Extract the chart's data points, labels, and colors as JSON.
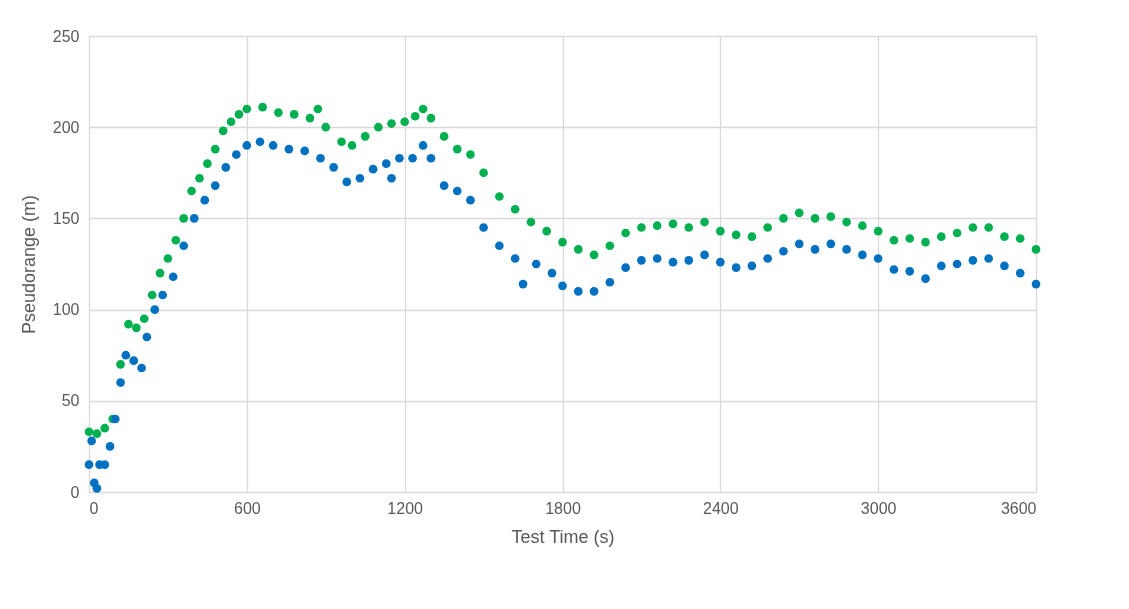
{
  "chart_data": {
    "type": "scatter",
    "xlabel": "Test Time (s)",
    "ylabel": "Pseudorange (m)",
    "xlim": [
      0,
      3600
    ],
    "xticks": [
      0,
      600,
      1200,
      1800,
      2400,
      3000,
      3600
    ],
    "ylim": [
      0,
      250
    ],
    "yticks": [
      0,
      50,
      100,
      150,
      200,
      250
    ],
    "grid": true,
    "marker": "circle",
    "legend": false,
    "series": [
      {
        "color": "#00b050",
        "x": [
          0,
          30,
          60,
          90,
          120,
          150,
          180,
          210,
          240,
          270,
          300,
          330,
          360,
          390,
          420,
          450,
          480,
          510,
          540,
          570,
          600,
          660,
          720,
          780,
          840,
          870,
          900,
          960,
          1000,
          1050,
          1100,
          1150,
          1200,
          1240,
          1270,
          1300,
          1350,
          1400,
          1450,
          1500,
          1560,
          1620,
          1680,
          1740,
          1800,
          1860,
          1920,
          1980,
          2040,
          2100,
          2160,
          2220,
          2280,
          2340,
          2400,
          2460,
          2520,
          2580,
          2640,
          2700,
          2760,
          2820,
          2880,
          2940,
          3000,
          3060,
          3120,
          3180,
          3240,
          3300,
          3360,
          3420,
          3480,
          3540,
          3600
        ],
        "values": [
          33,
          32,
          35,
          40,
          70,
          92,
          90,
          95,
          108,
          120,
          128,
          138,
          150,
          165,
          172,
          180,
          188,
          198,
          203,
          207,
          210,
          211,
          208,
          207,
          205,
          210,
          200,
          192,
          190,
          195,
          200,
          202,
          203,
          206,
          210,
          205,
          195,
          188,
          185,
          175,
          162,
          155,
          148,
          143,
          137,
          133,
          130,
          135,
          142,
          145,
          146,
          147,
          145,
          148,
          143,
          141,
          140,
          145,
          150,
          153,
          150,
          151,
          148,
          146,
          143,
          138,
          139,
          137,
          140,
          142,
          145,
          145,
          140,
          139,
          133
        ]
      },
      {
        "color": "#0070c0",
        "x": [
          0,
          10,
          20,
          30,
          40,
          60,
          80,
          100,
          120,
          140,
          170,
          200,
          220,
          250,
          280,
          320,
          360,
          400,
          440,
          480,
          520,
          560,
          600,
          650,
          700,
          760,
          820,
          880,
          930,
          980,
          1030,
          1080,
          1130,
          1150,
          1180,
          1230,
          1270,
          1300,
          1350,
          1400,
          1450,
          1500,
          1560,
          1620,
          1650,
          1700,
          1760,
          1800,
          1860,
          1920,
          1980,
          2040,
          2100,
          2160,
          2220,
          2280,
          2340,
          2400,
          2460,
          2520,
          2580,
          2640,
          2700,
          2760,
          2820,
          2880,
          2940,
          3000,
          3060,
          3120,
          3180,
          3240,
          3300,
          3360,
          3420,
          3480,
          3540,
          3600
        ],
        "values": [
          15,
          28,
          5,
          2,
          15,
          15,
          25,
          40,
          60,
          75,
          72,
          68,
          85,
          100,
          108,
          118,
          135,
          150,
          160,
          168,
          178,
          185,
          190,
          192,
          190,
          188,
          187,
          183,
          178,
          170,
          172,
          177,
          180,
          172,
          183,
          183,
          190,
          183,
          168,
          165,
          160,
          145,
          135,
          128,
          114,
          125,
          120,
          113,
          110,
          110,
          115,
          123,
          127,
          128,
          126,
          127,
          130,
          126,
          123,
          124,
          128,
          132,
          136,
          133,
          136,
          133,
          130,
          128,
          122,
          121,
          117,
          124,
          125,
          127,
          128,
          124,
          120,
          114
        ]
      }
    ]
  }
}
